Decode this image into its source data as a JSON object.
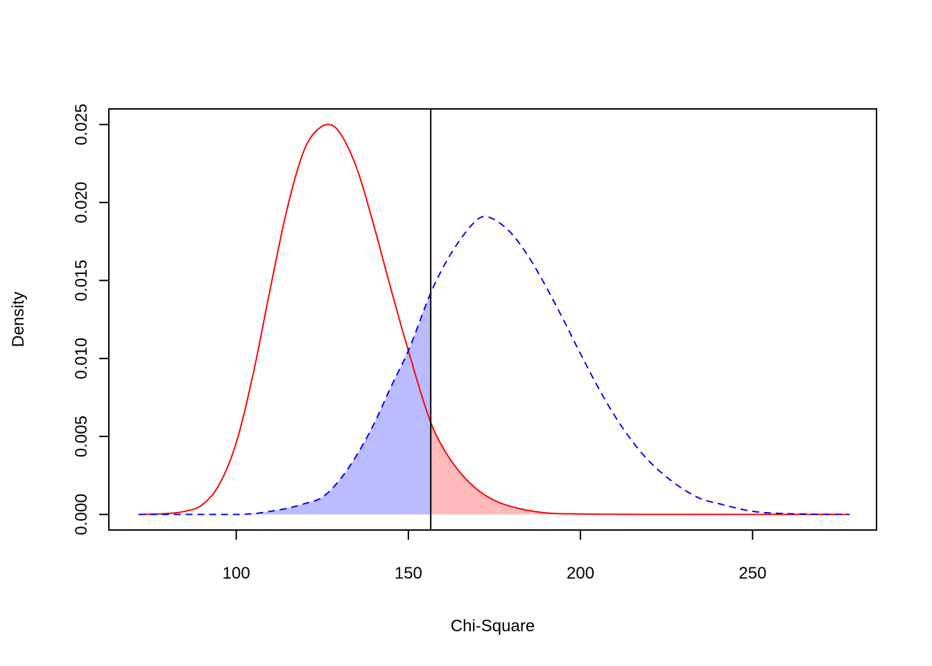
{
  "chart_data": {
    "type": "line",
    "title": "",
    "xlabel": "Chi-Square",
    "ylabel": "Density",
    "xlim": [
      63,
      286
    ],
    "ylim": [
      -0.001,
      0.026
    ],
    "x_ticks": [
      100,
      150,
      200,
      250
    ],
    "x_tick_labels": [
      "100",
      "150",
      "200",
      "250"
    ],
    "y_ticks": [
      0.0,
      0.005,
      0.01,
      0.015,
      0.02,
      0.025
    ],
    "y_tick_labels": [
      "0.000",
      "0.005",
      "0.010",
      "0.015",
      "0.020",
      "0.025"
    ],
    "grid": false,
    "critical_value": 156.5,
    "series": [
      {
        "color": "#ff0000",
        "line_style": "solid",
        "shade": "right-of-critical",
        "shade_color": "#ffbbbb",
        "x": [
          71.6,
          80,
          85,
          90,
          95,
          100,
          105,
          110,
          115,
          120,
          125,
          127,
          130,
          135,
          140,
          145,
          150,
          156.5,
          160,
          165,
          170,
          175,
          180,
          190,
          200,
          210,
          230,
          250,
          278.2
        ],
        "y": [
          0.0,
          6e-05,
          0.0002,
          0.0006,
          0.0019,
          0.0046,
          0.0091,
          0.0146,
          0.0198,
          0.0235,
          0.0249,
          0.025,
          0.0245,
          0.0222,
          0.0185,
          0.0144,
          0.0105,
          0.0059,
          0.0043,
          0.0027,
          0.0016,
          0.0009,
          0.0005,
          0.0001,
          3e-05,
          1e-05,
          0.0,
          0.0,
          0.0
        ]
      },
      {
        "color": "#0000ff",
        "line_style": "dashed",
        "shade": "left-of-critical",
        "shade_color": "#bbbbff",
        "x": [
          71.6,
          100,
          105,
          110,
          115,
          120,
          125,
          130,
          135,
          140,
          145,
          150,
          156.5,
          160,
          165,
          170,
          172,
          175,
          180,
          185,
          190,
          195,
          200,
          205,
          210,
          215,
          220,
          225,
          230,
          235,
          240,
          250,
          260,
          278.2
        ],
        "y": [
          0.0,
          0.0,
          5e-05,
          0.0002,
          0.0004,
          0.0007,
          0.0011,
          0.0022,
          0.0038,
          0.0058,
          0.0082,
          0.0105,
          0.0142,
          0.0158,
          0.0176,
          0.0189,
          0.0191,
          0.0189,
          0.018,
          0.0165,
          0.0146,
          0.0125,
          0.0103,
          0.0082,
          0.0063,
          0.0047,
          0.0034,
          0.0024,
          0.0016,
          0.001,
          0.0007,
          0.0002,
          5e-05,
          0.0
        ]
      }
    ]
  }
}
